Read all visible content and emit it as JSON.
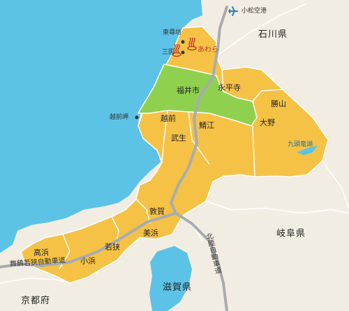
{
  "colors": {
    "sea": "#5cc3e6",
    "land": "#f2ede2",
    "fukui_region": "#f6c246",
    "fukui_city": "#8fd14f",
    "border": "#ffffff",
    "highway": "#a8acb0",
    "lake": "#5cc3e6",
    "onsen": "#c0392b"
  },
  "prefectures": {
    "ishikawa": "石川県",
    "gifu": "岐阜県",
    "shiga": "滋賀県",
    "kyoto": "京都府"
  },
  "airport": {
    "label": "小松空港",
    "icon": "airplane-icon"
  },
  "landmarks": {
    "tojinbo": "東尋坊",
    "mikuni": "三国",
    "echizen_cape": "越前岬",
    "kuzuryu_lake": "九頭竜湖"
  },
  "onsen": {
    "icon": "hot-spring-icon",
    "awara": "あわら"
  },
  "cities": {
    "fukui": "福井市",
    "eiheiji": "永平寺",
    "katsuyama": "勝山",
    "ono": "大野",
    "echizen": "越前",
    "sabae": "鯖江",
    "takefu": "武生",
    "tsuruga": "敦賀",
    "mihama": "美浜",
    "wakasa": "若狭",
    "obama": "小浜",
    "takahama": "高浜"
  },
  "roads": {
    "hokuriku": "北陸自動車道",
    "maizuru_wakasa": "舞鶴若狭自動車道"
  }
}
